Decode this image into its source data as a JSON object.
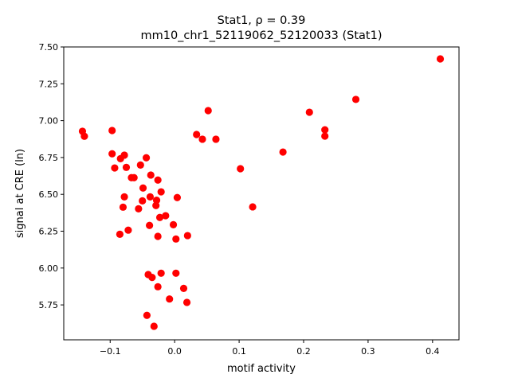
{
  "chart_data": {
    "type": "scatter",
    "title_line1": "Stat1, ρ = 0.39",
    "title_line2": "mm10_chr1_52119062_52120033 (Stat1)",
    "xlabel": "motif activity",
    "ylabel": "signal at CRE (ln)",
    "xlim": [
      -0.172,
      0.441
    ],
    "ylim": [
      5.513,
      7.5
    ],
    "xticks": [
      -0.1,
      0.0,
      0.1,
      0.2,
      0.3,
      0.4
    ],
    "xtick_labels": [
      "−0.1",
      "0.0",
      "0.1",
      "0.2",
      "0.3",
      "0.4"
    ],
    "yticks": [
      5.75,
      6.0,
      6.25,
      6.5,
      6.75,
      7.0,
      7.25,
      7.5
    ],
    "ytick_labels": [
      "5.75",
      "6.00",
      "6.25",
      "6.50",
      "6.75",
      "7.00",
      "7.25",
      "7.50"
    ],
    "grid": false,
    "marker_color": "#ff0000",
    "points": [
      [
        -0.143,
        6.928
      ],
      [
        -0.14,
        6.894
      ],
      [
        -0.097,
        6.933
      ],
      [
        0.034,
        6.906
      ],
      [
        -0.097,
        6.775
      ],
      [
        -0.084,
        6.742
      ],
      [
        -0.078,
        6.766
      ],
      [
        -0.044,
        6.748
      ],
      [
        -0.093,
        6.679
      ],
      [
        -0.075,
        6.683
      ],
      [
        -0.053,
        6.699
      ],
      [
        -0.067,
        6.613
      ],
      [
        -0.063,
        6.613
      ],
      [
        -0.037,
        6.631
      ],
      [
        -0.026,
        6.597
      ],
      [
        -0.049,
        6.543
      ],
      [
        -0.021,
        6.517
      ],
      [
        -0.078,
        6.483
      ],
      [
        -0.038,
        6.483
      ],
      [
        -0.028,
        6.46
      ],
      [
        -0.029,
        6.424
      ],
      [
        -0.05,
        6.456
      ],
      [
        -0.08,
        6.413
      ],
      [
        -0.056,
        6.402
      ],
      [
        0.004,
        6.478
      ],
      [
        -0.023,
        6.343
      ],
      [
        -0.014,
        6.355
      ],
      [
        -0.039,
        6.289
      ],
      [
        -0.002,
        6.294
      ],
      [
        -0.085,
        6.229
      ],
      [
        -0.072,
        6.257
      ],
      [
        -0.026,
        6.215
      ],
      [
        0.002,
        6.197
      ],
      [
        0.02,
        6.22
      ],
      [
        -0.041,
        5.956
      ],
      [
        -0.035,
        5.936
      ],
      [
        -0.021,
        5.965
      ],
      [
        0.002,
        5.965
      ],
      [
        -0.026,
        5.873
      ],
      [
        0.014,
        5.862
      ],
      [
        -0.008,
        5.79
      ],
      [
        0.019,
        5.767
      ],
      [
        -0.043,
        5.679
      ],
      [
        -0.032,
        5.605
      ],
      [
        0.052,
        7.068
      ],
      [
        0.043,
        6.874
      ],
      [
        0.064,
        6.874
      ],
      [
        0.102,
        6.674
      ],
      [
        0.121,
        6.415
      ],
      [
        0.168,
        6.787
      ],
      [
        0.209,
        7.057
      ],
      [
        0.233,
        6.938
      ],
      [
        0.233,
        6.895
      ],
      [
        0.281,
        7.144
      ],
      [
        0.412,
        7.419
      ]
    ]
  }
}
